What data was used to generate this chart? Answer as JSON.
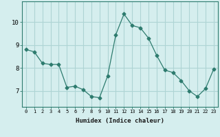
{
  "xlabel": "Humidex (Indice chaleur)",
  "x": [
    0,
    1,
    2,
    3,
    4,
    5,
    6,
    7,
    8,
    9,
    10,
    11,
    12,
    13,
    14,
    15,
    16,
    17,
    18,
    19,
    20,
    21,
    22,
    23
  ],
  "y": [
    8.8,
    8.7,
    8.2,
    8.15,
    8.15,
    7.15,
    7.2,
    7.05,
    6.75,
    6.7,
    7.65,
    9.45,
    10.35,
    9.85,
    9.75,
    9.3,
    8.55,
    7.9,
    7.8,
    7.45,
    7.0,
    6.75,
    7.1,
    7.95
  ],
  "line_color": "#2d7b6e",
  "marker": "D",
  "marker_size": 2.5,
  "bg_color": "#d5eeee",
  "grid_color": "#aed4d4",
  "ylim": [
    6.3,
    10.9
  ],
  "yticks": [
    7,
    8,
    9,
    10
  ],
  "xticks": [
    0,
    1,
    2,
    3,
    4,
    5,
    6,
    7,
    8,
    9,
    10,
    11,
    12,
    13,
    14,
    15,
    16,
    17,
    18,
    19,
    20,
    21,
    22,
    23
  ],
  "tick_label_fontsize": 5.0,
  "ytick_label_fontsize": 6.5,
  "xlabel_fontsize": 6.5
}
